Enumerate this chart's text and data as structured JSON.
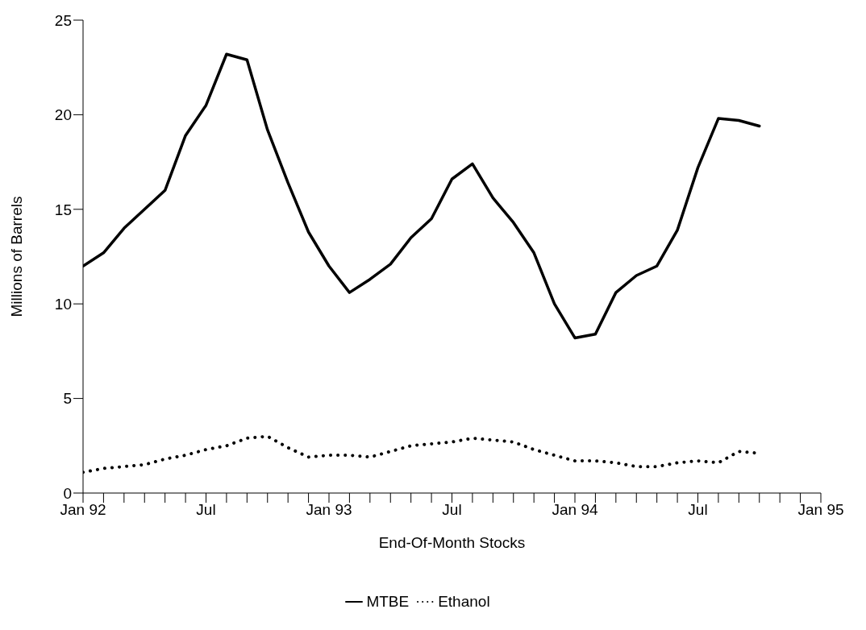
{
  "chart_data": {
    "type": "line",
    "xlabel": "End-Of-Month Stocks",
    "ylabel": "Millions of Barrels",
    "x": [
      "1992-01",
      "1992-02",
      "1992-03",
      "1992-04",
      "1992-05",
      "1992-06",
      "1992-07",
      "1992-08",
      "1992-09",
      "1992-10",
      "1992-11",
      "1992-12",
      "1993-01",
      "1993-02",
      "1993-03",
      "1993-04",
      "1993-05",
      "1993-06",
      "1993-07",
      "1993-08",
      "1993-09",
      "1993-10",
      "1993-11",
      "1993-12",
      "1994-01",
      "1994-02",
      "1994-03",
      "1994-04",
      "1994-05",
      "1994-06",
      "1994-07",
      "1994-08",
      "1994-09",
      "1994-10"
    ],
    "series": [
      {
        "name": "MTBE",
        "color": "#000000",
        "line_style": "solid",
        "values": [
          12.0,
          12.7,
          14.0,
          15.0,
          16.0,
          18.9,
          20.5,
          23.2,
          22.9,
          19.2,
          16.4,
          13.8,
          12.0,
          10.6,
          11.3,
          12.1,
          13.5,
          14.5,
          16.6,
          17.4,
          15.6,
          14.3,
          12.7,
          10.0,
          8.2,
          8.4,
          10.6,
          11.5,
          12.0,
          13.9,
          17.2,
          19.8,
          19.7,
          19.4
        ]
      },
      {
        "name": "Ethanol",
        "color": "#000000",
        "line_style": "dotted",
        "values": [
          1.1,
          1.3,
          1.4,
          1.5,
          1.8,
          2.0,
          2.3,
          2.5,
          2.9,
          3.0,
          2.4,
          1.9,
          2.0,
          2.0,
          1.9,
          2.2,
          2.5,
          2.6,
          2.7,
          2.9,
          2.8,
          2.7,
          2.3,
          2.0,
          1.7,
          1.7,
          1.6,
          1.4,
          1.4,
          1.6,
          1.7,
          1.6,
          2.2,
          2.1
        ]
      }
    ],
    "xlim": [
      "1992-01",
      "1995-01"
    ],
    "xticks": [
      {
        "value": "1992-01",
        "label": "Jan 92"
      },
      {
        "value": "1992-02",
        "label": null
      },
      {
        "value": "1992-03",
        "label": null
      },
      {
        "value": "1992-04",
        "label": null
      },
      {
        "value": "1992-05",
        "label": null
      },
      {
        "value": "1992-06",
        "label": null
      },
      {
        "value": "1992-07",
        "label": "Jul"
      },
      {
        "value": "1992-08",
        "label": null
      },
      {
        "value": "1992-09",
        "label": null
      },
      {
        "value": "1992-10",
        "label": null
      },
      {
        "value": "1992-11",
        "label": null
      },
      {
        "value": "1992-12",
        "label": null
      },
      {
        "value": "1993-01",
        "label": "Jan 93"
      },
      {
        "value": "1993-02",
        "label": null
      },
      {
        "value": "1993-03",
        "label": null
      },
      {
        "value": "1993-04",
        "label": null
      },
      {
        "value": "1993-05",
        "label": null
      },
      {
        "value": "1993-06",
        "label": null
      },
      {
        "value": "1993-07",
        "label": "Jul"
      },
      {
        "value": "1993-08",
        "label": null
      },
      {
        "value": "1993-09",
        "label": null
      },
      {
        "value": "1993-10",
        "label": null
      },
      {
        "value": "1993-11",
        "label": null
      },
      {
        "value": "1993-12",
        "label": null
      },
      {
        "value": "1994-01",
        "label": "Jan 94"
      },
      {
        "value": "1994-02",
        "label": null
      },
      {
        "value": "1994-03",
        "label": null
      },
      {
        "value": "1994-04",
        "label": null
      },
      {
        "value": "1994-05",
        "label": null
      },
      {
        "value": "1994-06",
        "label": null
      },
      {
        "value": "1994-07",
        "label": "Jul"
      },
      {
        "value": "1994-08",
        "label": null
      },
      {
        "value": "1994-09",
        "label": null
      },
      {
        "value": "1994-10",
        "label": null
      },
      {
        "value": "1994-11",
        "label": null
      },
      {
        "value": "1994-12",
        "label": null
      },
      {
        "value": "1995-01",
        "label": "Jan 95"
      }
    ],
    "ylim": [
      0,
      25
    ],
    "yticks": [
      0,
      5,
      10,
      15,
      20,
      25
    ],
    "grid": false,
    "legend": "bottom",
    "marker": "none"
  }
}
